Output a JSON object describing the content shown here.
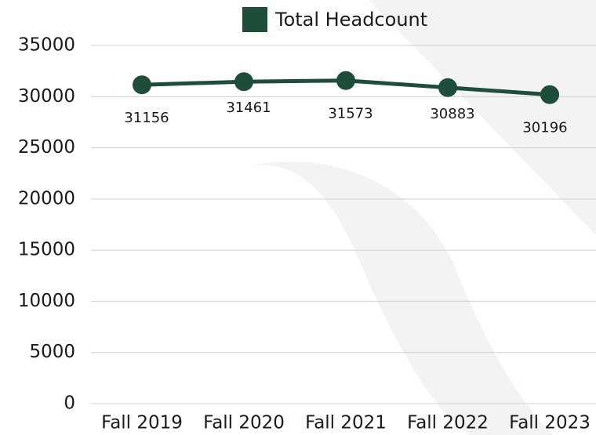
{
  "chart_data": {
    "type": "line",
    "categories": [
      "Fall 2019",
      "Fall 2020",
      "Fall 2021",
      "Fall 2022",
      "Fall 2023"
    ],
    "series": [
      {
        "name": "Total Headcount",
        "color": "#1e4d3a",
        "values": [
          31156,
          31461,
          31573,
          30883,
          30196
        ]
      }
    ],
    "ylim": [
      0,
      35000
    ],
    "yticks": [
      0,
      5000,
      10000,
      15000,
      20000,
      25000,
      30000,
      35000
    ],
    "grid": true,
    "legend": "top"
  }
}
